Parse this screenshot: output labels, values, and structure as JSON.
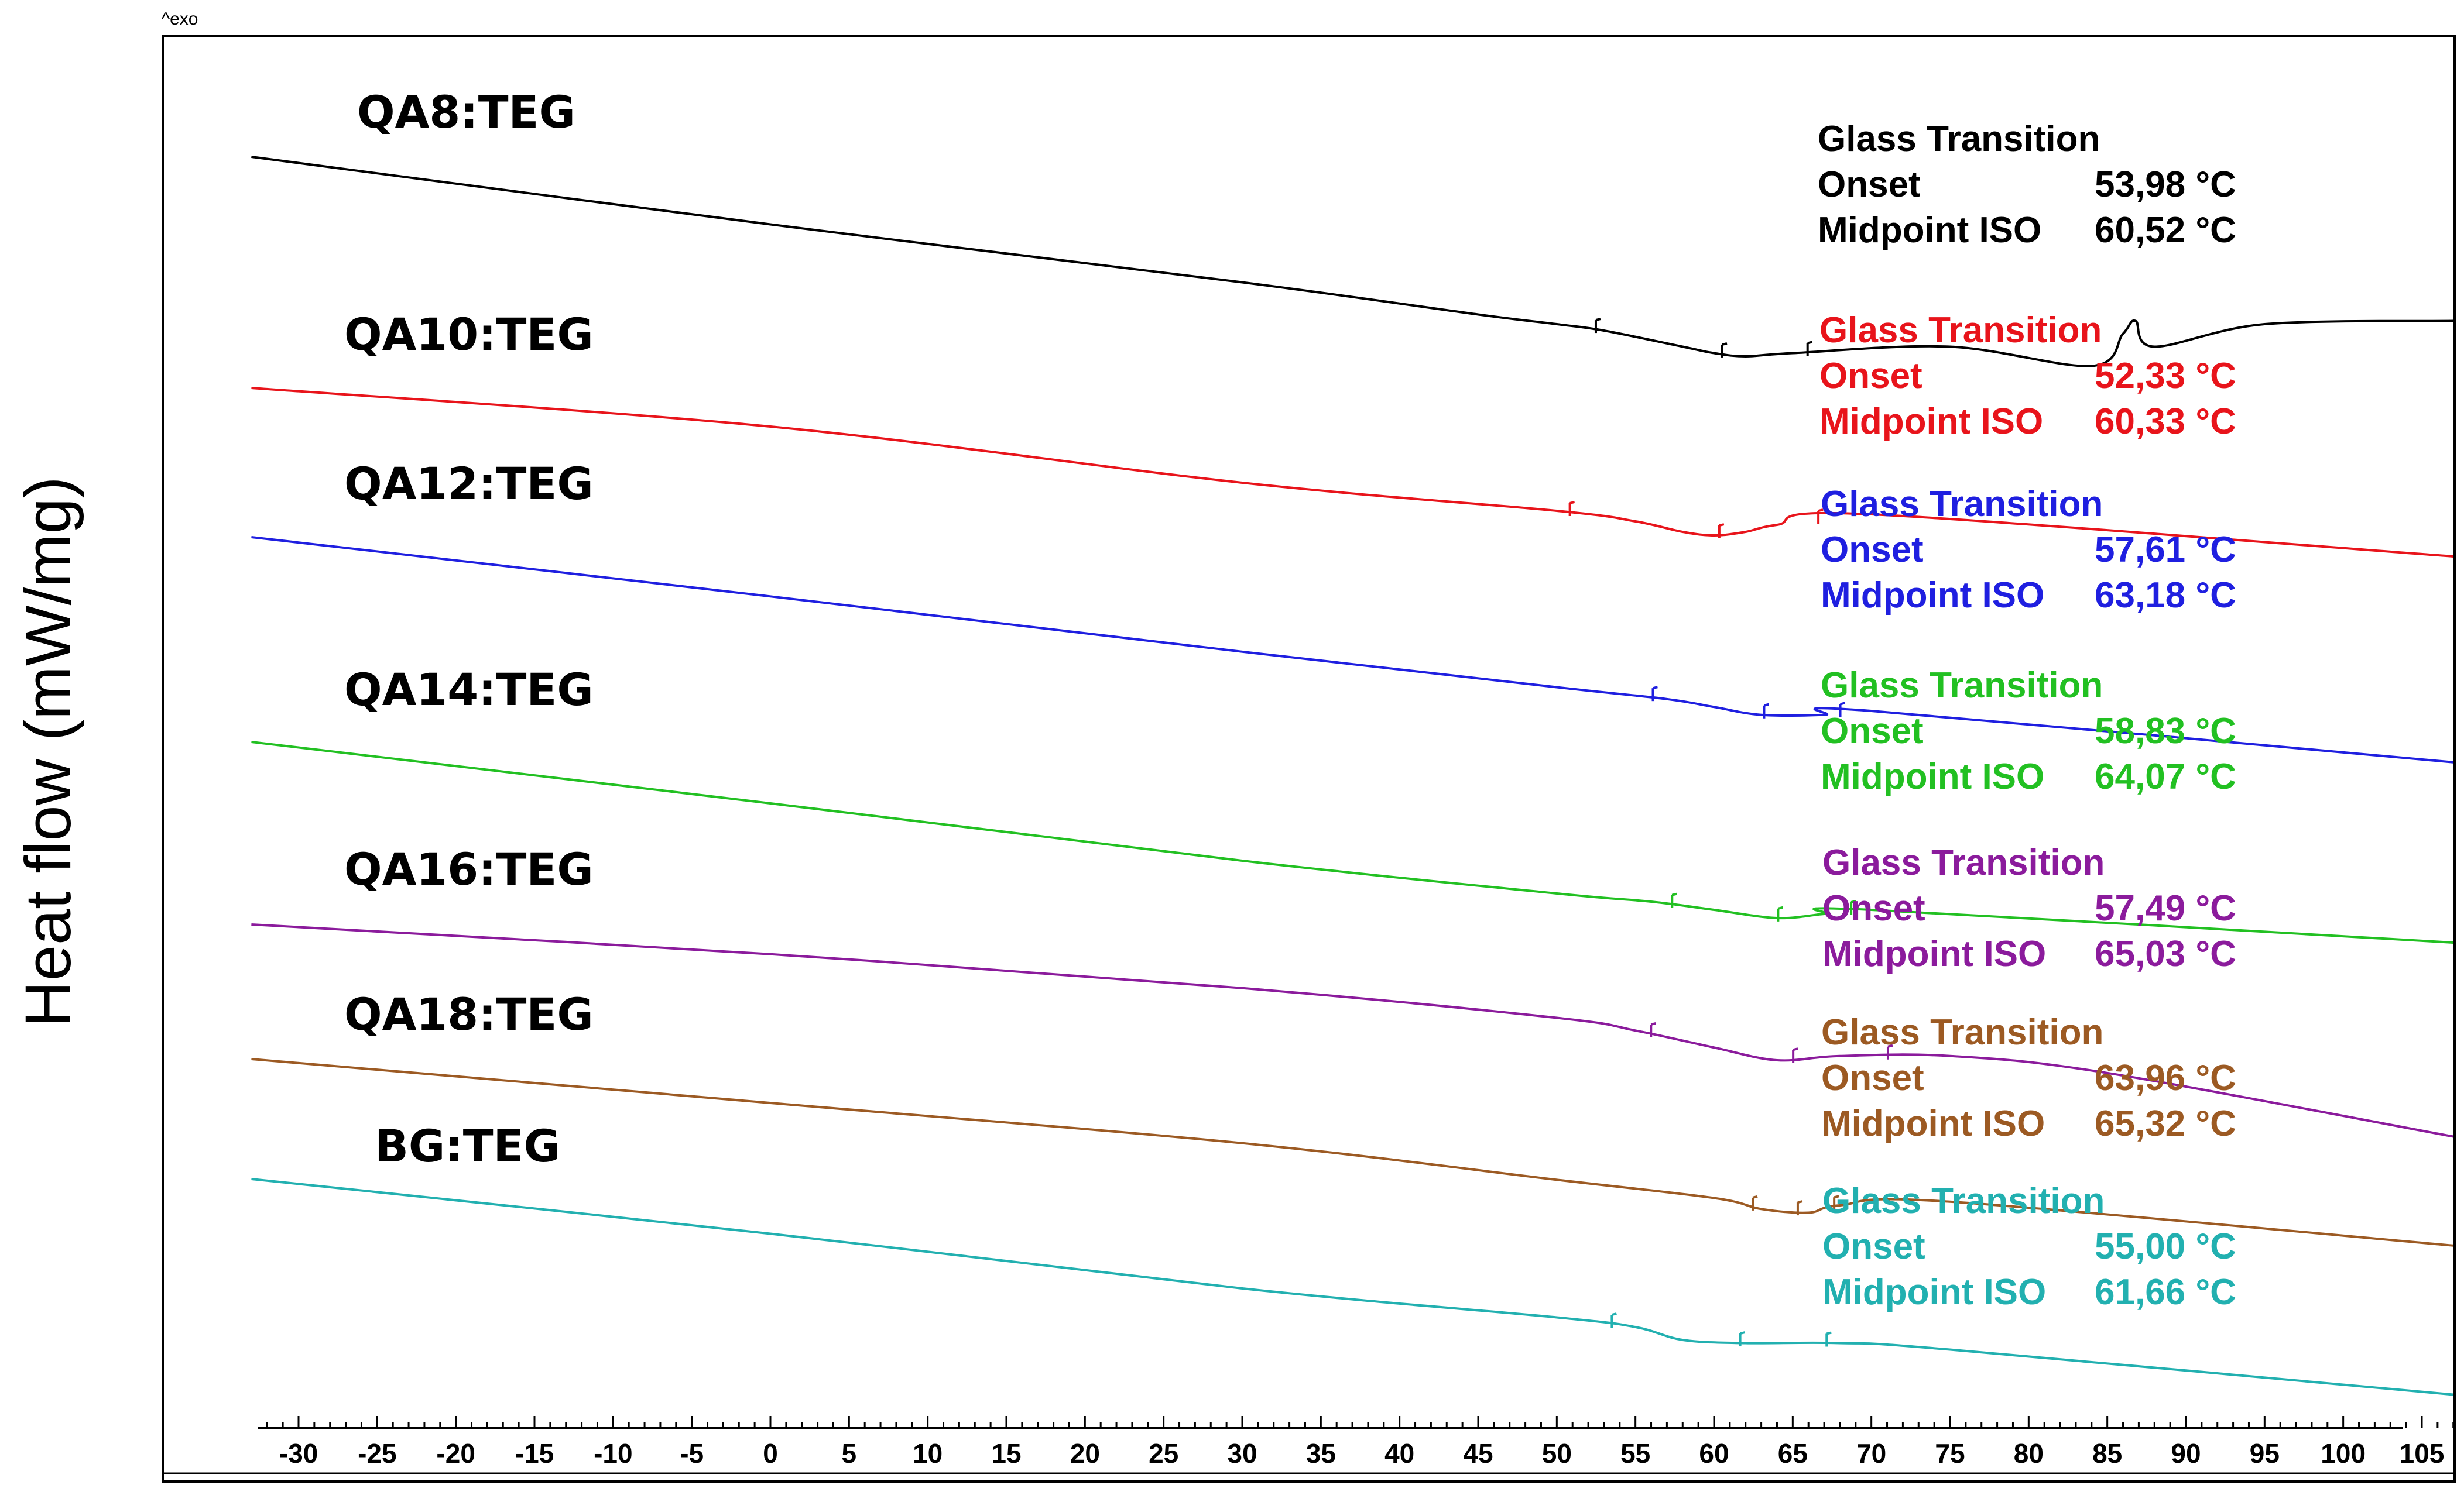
{
  "chart_data": {
    "type": "line",
    "top_marker": "^exo",
    "ylabel": "Heat flow (mW/mg)",
    "xlabel": "",
    "xlim": [
      -33,
      107
    ],
    "xticks": [
      "-30",
      "-25",
      "-20",
      "-15",
      "-10",
      "-5",
      "0",
      "5",
      "10",
      "15",
      "20",
      "25",
      "30",
      "35",
      "40",
      "45",
      "50",
      "55",
      "60",
      "65",
      "70",
      "75",
      "80",
      "85",
      "90",
      "95",
      "100",
      "105"
    ],
    "xtick_values": [
      -30,
      -25,
      -20,
      -15,
      -10,
      -5,
      0,
      5,
      10,
      15,
      20,
      25,
      30,
      35,
      40,
      45,
      50,
      55,
      60,
      65,
      70,
      75,
      80,
      85,
      90,
      95,
      100,
      105
    ],
    "series": [
      {
        "name": "QA8:TEG",
        "color": "#000000",
        "x": [
          -33,
          0,
          30,
          45,
          50,
          53,
          58,
          60,
          62,
          65,
          75,
          84,
          86,
          86.8,
          88,
          95,
          107
        ],
        "y": [
          0.0,
          -1.05,
          -1.95,
          -2.45,
          -2.6,
          -2.7,
          -2.95,
          -3.05,
          -3.1,
          -3.05,
          -2.95,
          -3.25,
          -2.75,
          -2.55,
          -2.95,
          -2.6,
          -2.55
        ],
        "annotation": {
          "title": "Glass Transition",
          "onset_label": "Onset",
          "onset": "53,98 °C",
          "midpoint_label": "Midpoint ISO",
          "midpoint": "60,52 °C"
        }
      },
      {
        "name": "QA10:TEG",
        "color": "#e8141b",
        "x": [
          -33,
          0,
          30,
          50,
          55,
          58,
          60,
          62,
          64,
          70,
          107
        ],
        "y": [
          0.0,
          -0.55,
          -1.35,
          -1.75,
          -1.9,
          -2.05,
          -2.1,
          -2.05,
          -1.95,
          -1.8,
          -2.4
        ],
        "annotation": {
          "title": "Glass Transition",
          "onset_label": "Onset",
          "onset": "52,33 °C",
          "midpoint_label": "Midpoint ISO",
          "midpoint": "60,33 °C"
        }
      },
      {
        "name": "QA12:TEG",
        "color": "#1f1fe0",
        "x": [
          -33,
          0,
          30,
          50,
          57,
          60,
          63,
          67,
          70,
          107
        ],
        "y": [
          0.0,
          -0.75,
          -1.45,
          -1.9,
          -2.05,
          -2.15,
          -2.25,
          -2.25,
          -2.2,
          -2.85
        ],
        "annotation": {
          "title": "Glass Transition",
          "onset_label": "Onset",
          "onset": "57,61 °C",
          "midpoint_label": "Midpoint ISO",
          "midpoint": "63,18 °C"
        }
      },
      {
        "name": "QA14:TEG",
        "color": "#22c022",
        "x": [
          -33,
          0,
          30,
          50,
          56,
          60,
          64,
          67,
          70,
          107
        ],
        "y": [
          0.0,
          -0.75,
          -1.45,
          -1.85,
          -1.95,
          -2.05,
          -2.15,
          -2.1,
          -2.05,
          -2.45
        ],
        "annotation": {
          "title": "Glass Transition",
          "onset_label": "Onset",
          "onset": "58,83 °C",
          "midpoint_label": "Midpoint ISO",
          "midpoint": "64,07 °C"
        }
      },
      {
        "name": "QA16:TEG",
        "color": "#8b1b9c",
        "x": [
          -33,
          0,
          30,
          50,
          55,
          60,
          64,
          68,
          75,
          85,
          107
        ],
        "y": [
          0.0,
          -0.35,
          -0.75,
          -1.1,
          -1.25,
          -1.45,
          -1.6,
          -1.55,
          -1.55,
          -1.75,
          -2.5
        ],
        "annotation": {
          "title": "Glass Transition",
          "onset_label": "Onset",
          "onset": "57,49 °C",
          "midpoint_label": "Midpoint ISO",
          "midpoint": "65,03 °C"
        }
      },
      {
        "name": "QA18:TEG",
        "color": "#9c5a23",
        "x": [
          -33,
          0,
          30,
          50,
          60,
          63,
          66,
          68,
          75,
          107
        ],
        "y": [
          0.0,
          -0.6,
          -1.15,
          -1.65,
          -1.9,
          -2.05,
          -2.1,
          -2.0,
          -1.95,
          -2.55
        ],
        "annotation": {
          "title": "Glass Transition",
          "onset_label": "Onset",
          "onset": "63,96 °C",
          "midpoint_label": "Midpoint ISO",
          "midpoint": "65,32 °C"
        }
      },
      {
        "name": "BG:TEG",
        "color": "#22b0b0",
        "x": [
          -33,
          0,
          30,
          50,
          55,
          58,
          62,
          68,
          75,
          107
        ],
        "y": [
          0.0,
          -0.85,
          -1.7,
          -2.15,
          -2.3,
          -2.5,
          -2.55,
          -2.55,
          -2.65,
          -3.35
        ],
        "annotation": {
          "title": "Glass Transition",
          "onset_label": "Onset",
          "onset": "55,00 °C",
          "midpoint_label": "Midpoint ISO",
          "midpoint": "61,66 °C"
        }
      }
    ]
  }
}
